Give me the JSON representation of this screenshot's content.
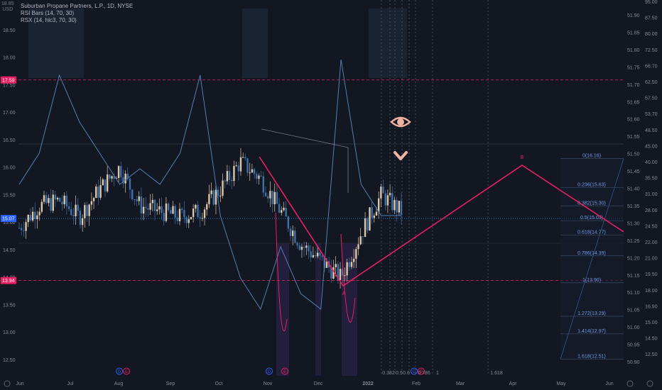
{
  "legend": {
    "symbol_line": "Suburban Propane Partners, L.P., 1D, NYSE",
    "rsi_bars": "RSI Bars (14, 70, 30)",
    "rsx": "RSX (14, hlc3, 70, 30)"
  },
  "currency": "USD",
  "top_left_tick": "18.85",
  "left_axis_ticks": [
    "18.50",
    "18.00",
    "17.50",
    "17.00",
    "16.50",
    "16.00",
    "15.50",
    "15.00",
    "14.50",
    "14.00",
    "13.50",
    "13.00",
    "12.50"
  ],
  "right_axis_inner_ticks": [
    "51.90",
    "51.85",
    "51.80",
    "51.75",
    "51.70",
    "51.65",
    "51.60",
    "51.55",
    "51.50",
    "51.45",
    "51.40",
    "51.35",
    "51.30",
    "51.25",
    "51.20",
    "51.15",
    "51.10",
    "51.05",
    "51.00",
    "50.95",
    "50.90"
  ],
  "right_axis_outer_ticks": [
    "90.00",
    "85.00",
    "80.00",
    "75.00",
    "70.00",
    "65.00",
    "60.00",
    "55.00",
    "50.00",
    "45.00",
    "40.00",
    "35.00",
    "30.00",
    "25.00",
    "20.00",
    "16.90",
    "14.50",
    "12.50",
    "10.00",
    "7.50",
    "5.00",
    "2.50",
    "0.00"
  ],
  "right_axis_outer_display": [
    "95.00",
    "87.50",
    "80.00",
    "72.50",
    "66.70",
    "62.50",
    "57.50",
    "53.70",
    "48.50",
    "45.00",
    "40.00",
    "35.50",
    "31.00",
    "28.00",
    "24.50",
    "22.00",
    "21.00",
    "19.50",
    "18.00",
    "16.90",
    "15.00",
    "14.50",
    "12.50"
  ],
  "price_tags": {
    "upper_band": "17.59",
    "current": "15.07",
    "lower_band": "13.94"
  },
  "x_axis_labels": [
    "Jun",
    "Jul",
    "Aug",
    "Sep",
    "Oct",
    "Nov",
    "Dec",
    "2022",
    "Feb",
    "Mar",
    "Apr",
    "May",
    "Jun"
  ],
  "fib_levels": [
    {
      "ratio": "0",
      "price": "16.16",
      "label": "0(16.16)"
    },
    {
      "ratio": "0.236",
      "price": "15.63",
      "label": "0.236(15.63)"
    },
    {
      "ratio": "0.382",
      "price": "15.30",
      "label": "0.382(15.30)"
    },
    {
      "ratio": "0.5",
      "price": "15.03",
      "label": "0.5(15.03)"
    },
    {
      "ratio": "0.618",
      "price": "14.77",
      "label": "0.618(14.77)"
    },
    {
      "ratio": "0.786",
      "price": "14.39",
      "label": "0.786(14.39)"
    },
    {
      "ratio": "1",
      "price": "13.90",
      "label": "1(13.90)"
    },
    {
      "ratio": "1.272",
      "price": "13.29",
      "label": "1.272(13.29)"
    },
    {
      "ratio": "1.414",
      "price": "12.97",
      "label": "1.414(12.97)"
    },
    {
      "ratio": "1.618",
      "price": "12.51",
      "label": "1.618(12.51)"
    }
  ],
  "time_fib_labels": [
    "0.382",
    "0.5",
    "0.6",
    "0.786",
    "1",
    "1.618"
  ],
  "pattern_points": {
    "a": "A",
    "b": "B"
  },
  "colors": {
    "background": "#131722",
    "up": "#dcc8a8",
    "down": "#3d6fa8",
    "pattern": "#e91e63",
    "rsx_line": "#4f7fb6",
    "fib_line": "#2962ff",
    "dotted_blue": "#2196f3",
    "band_dash": "#e91e63"
  },
  "chart_data": {
    "type": "candlestick",
    "title": "Suburban Propane Partners, L.P., 1D, NYSE",
    "xlabel": "",
    "ylabel": "",
    "ylim": [
      12.35,
      18.9
    ],
    "x": [
      "2021-06-01",
      "2021-06-15",
      "2021-07-01",
      "2021-07-15",
      "2021-08-01",
      "2021-08-10",
      "2021-08-20",
      "2021-09-01",
      "2021-09-15",
      "2021-10-01",
      "2021-10-15",
      "2021-10-25",
      "2021-11-01",
      "2021-11-15",
      "2021-11-30",
      "2021-12-10",
      "2021-12-20",
      "2021-12-31",
      "2022-01-10",
      "2022-01-20"
    ],
    "series": [
      {
        "name": "Close",
        "values": [
          14.9,
          15.3,
          15.4,
          15.1,
          15.6,
          16.0,
          15.3,
          15.2,
          15.1,
          15.2,
          15.6,
          16.1,
          15.8,
          15.2,
          14.6,
          14.3,
          14.0,
          14.8,
          15.5,
          15.2
        ]
      },
      {
        "name": "RSX",
        "values": [
          50,
          60,
          85,
          70,
          60,
          50,
          55,
          50,
          60,
          85,
          40,
          20,
          10,
          30,
          15,
          10,
          90,
          50,
          40,
          40
        ]
      }
    ],
    "annotations": {
      "upper_band": 17.59,
      "lower_band": 13.94,
      "current_price": 15.07,
      "pattern_A": 13.94,
      "pattern_B_projected": 16.08
    }
  },
  "ui": {
    "eye_icon_name": "eye-icon",
    "chevron_icon_name": "chevron-down-icon"
  }
}
